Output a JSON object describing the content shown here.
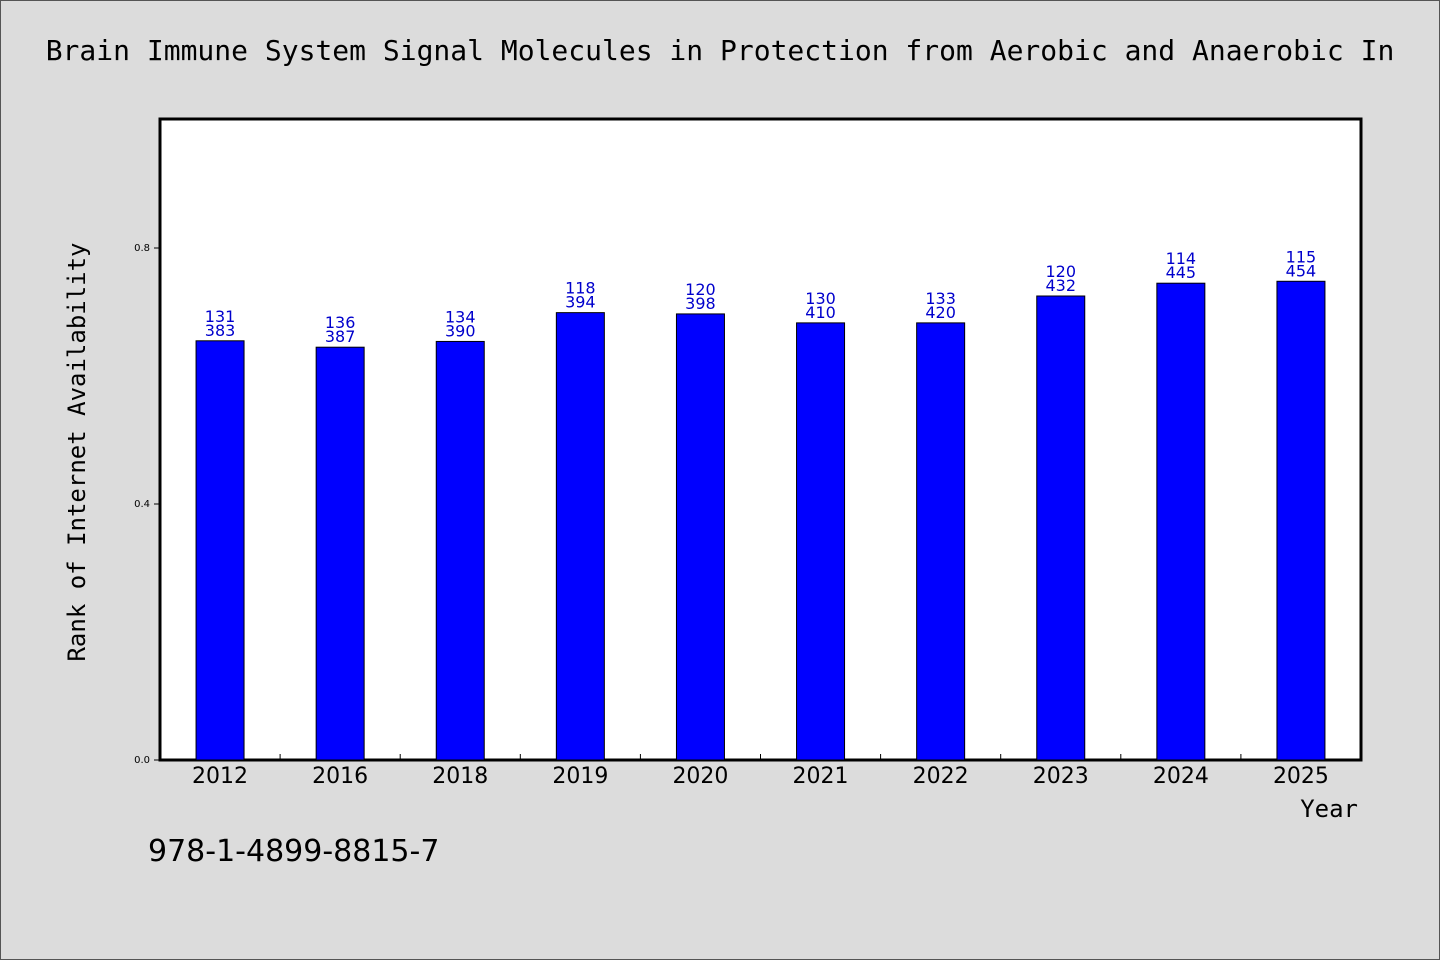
{
  "chart_data": {
    "type": "bar",
    "title": "Brain Immune System Signal Molecules in Protection from Aerobic and Anaerobic In",
    "xlabel": "Year",
    "ylabel": "Rank of Internet Availability",
    "categories": [
      "2012",
      "2016",
      "2018",
      "2019",
      "2020",
      "2021",
      "2022",
      "2023",
      "2024",
      "2025"
    ],
    "values": [
      0.655,
      0.645,
      0.654,
      0.699,
      0.697,
      0.683,
      0.683,
      0.725,
      0.745,
      0.748
    ],
    "bar_labels_top": [
      "131",
      "136",
      "134",
      "118",
      "120",
      "130",
      "133",
      "120",
      "114",
      "115"
    ],
    "bar_labels_bottom": [
      "383",
      "387",
      "390",
      "394",
      "398",
      "410",
      "420",
      "432",
      "445",
      "454"
    ],
    "yticks": [
      "0.0",
      "0.4",
      "0.8"
    ],
    "ylim": [
      0,
      1.0
    ],
    "grid": false,
    "legend": "none",
    "bar_color": "#0000ff",
    "label_color": "#0000cc"
  },
  "footer": {
    "isbn": "978-1-4899-8815-7"
  }
}
